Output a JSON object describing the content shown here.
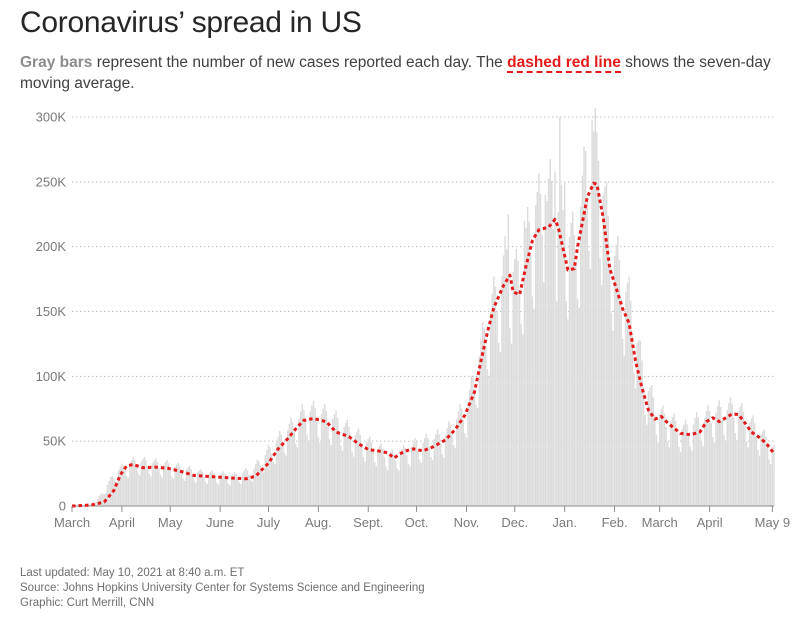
{
  "title": "Coronavirus’ spread in US",
  "subtitle": {
    "part1": "Gray bars",
    "part2": " represent the number of new cases reported each day. The ",
    "part3": "dashed red line",
    "part4": " shows the seven-day moving average."
  },
  "footer": {
    "updated": "Last updated: May 10, 2021 at 8:40 a.m. ET",
    "source": "Source: Johns Hopkins University Center for Systems Science and Engineering",
    "graphic": "Graphic: Curt Merrill, CNN"
  },
  "colors": {
    "bar": "#dcdcdc",
    "line": "#e31b1b",
    "grid": "#bdbdbd",
    "axis": "#8c8c8c"
  },
  "chart_data": {
    "type": "bar",
    "title": "Coronavirus’ spread in US",
    "xlabel": "",
    "ylabel": "",
    "ylim": [
      0,
      300000
    ],
    "xlim_days": [
      0,
      436
    ],
    "yticks": [
      {
        "value": 0,
        "label": "0"
      },
      {
        "value": 50000,
        "label": "50K"
      },
      {
        "value": 100000,
        "label": "100K"
      },
      {
        "value": 150000,
        "label": "150K"
      },
      {
        "value": 200000,
        "label": "200K"
      },
      {
        "value": 250000,
        "label": "250K"
      },
      {
        "value": 300000,
        "label": "300K"
      }
    ],
    "xticks": [
      {
        "day": 0,
        "label": "March"
      },
      {
        "day": 31,
        "label": "April"
      },
      {
        "day": 61,
        "label": "May"
      },
      {
        "day": 92,
        "label": "June"
      },
      {
        "day": 122,
        "label": "July"
      },
      {
        "day": 153,
        "label": "Aug."
      },
      {
        "day": 184,
        "label": "Sept."
      },
      {
        "day": 214,
        "label": "Oct."
      },
      {
        "day": 245,
        "label": "Nov."
      },
      {
        "day": 275,
        "label": "Dec."
      },
      {
        "day": 306,
        "label": "Jan."
      },
      {
        "day": 337,
        "label": "Feb."
      },
      {
        "day": 365,
        "label": "March"
      },
      {
        "day": 396,
        "label": "April"
      },
      {
        "day": 435,
        "label": "May 9"
      }
    ],
    "series": [
      {
        "name": "Seven-day moving average",
        "style": "dashed-red-line",
        "points": [
          [
            0,
            0
          ],
          [
            12,
            800
          ],
          [
            20,
            3000
          ],
          [
            26,
            12000
          ],
          [
            30,
            24000
          ],
          [
            34,
            31000
          ],
          [
            38,
            32000
          ],
          [
            44,
            29500
          ],
          [
            52,
            30000
          ],
          [
            60,
            29000
          ],
          [
            68,
            26500
          ],
          [
            76,
            23500
          ],
          [
            88,
            22500
          ],
          [
            100,
            21500
          ],
          [
            108,
            21000
          ],
          [
            114,
            23000
          ],
          [
            122,
            33000
          ],
          [
            128,
            44000
          ],
          [
            134,
            52000
          ],
          [
            140,
            61000
          ],
          [
            144,
            66000
          ],
          [
            150,
            67500
          ],
          [
            158,
            65000
          ],
          [
            164,
            57000
          ],
          [
            172,
            53500
          ],
          [
            178,
            48000
          ],
          [
            184,
            43500
          ],
          [
            190,
            42500
          ],
          [
            196,
            41000
          ],
          [
            200,
            37000
          ],
          [
            206,
            42000
          ],
          [
            212,
            44000
          ],
          [
            218,
            42500
          ],
          [
            224,
            45500
          ],
          [
            232,
            51000
          ],
          [
            238,
            59000
          ],
          [
            244,
            70000
          ],
          [
            250,
            88000
          ],
          [
            254,
            112000
          ],
          [
            258,
            134000
          ],
          [
            262,
            153000
          ],
          [
            268,
            170000
          ],
          [
            272,
            178000
          ],
          [
            274,
            165000
          ],
          [
            278,
            163000
          ],
          [
            282,
            185000
          ],
          [
            286,
            205000
          ],
          [
            290,
            213000
          ],
          [
            296,
            215000
          ],
          [
            300,
            221000
          ],
          [
            302,
            215000
          ],
          [
            306,
            193000
          ],
          [
            308,
            182000
          ],
          [
            312,
            183000
          ],
          [
            314,
            200000
          ],
          [
            318,
            225000
          ],
          [
            320,
            238000
          ],
          [
            324,
            249000
          ],
          [
            326,
            248000
          ],
          [
            330,
            222000
          ],
          [
            334,
            183000
          ],
          [
            338,
            168000
          ],
          [
            342,
            152000
          ],
          [
            346,
            141000
          ],
          [
            350,
            112000
          ],
          [
            354,
            91000
          ],
          [
            358,
            74000
          ],
          [
            362,
            67000
          ],
          [
            366,
            69000
          ],
          [
            370,
            64000
          ],
          [
            374,
            60000
          ],
          [
            378,
            56000
          ],
          [
            384,
            55000
          ],
          [
            390,
            57000
          ],
          [
            394,
            65000
          ],
          [
            398,
            68000
          ],
          [
            402,
            65000
          ],
          [
            406,
            68000
          ],
          [
            410,
            71000
          ],
          [
            414,
            70500
          ],
          [
            418,
            64000
          ],
          [
            422,
            57000
          ],
          [
            428,
            52000
          ],
          [
            432,
            47000
          ],
          [
            436,
            40500
          ]
        ]
      },
      {
        "name": "Daily new cases",
        "style": "gray-bars",
        "anchors": [
          [
            0,
            0
          ],
          [
            14,
            1500
          ],
          [
            28,
            26000
          ],
          [
            40,
            33000
          ],
          [
            60,
            30000
          ],
          [
            80,
            24000
          ],
          [
            100,
            22000
          ],
          [
            112,
            26000
          ],
          [
            122,
            40000
          ],
          [
            136,
            58000
          ],
          [
            146,
            70000
          ],
          [
            160,
            66000
          ],
          [
            176,
            52000
          ],
          [
            190,
            42000
          ],
          [
            200,
            36000
          ],
          [
            214,
            45000
          ],
          [
            232,
            52000
          ],
          [
            246,
            75000
          ],
          [
            258,
            135000
          ],
          [
            270,
            180000
          ],
          [
            276,
            168000
          ],
          [
            288,
            215000
          ],
          [
            298,
            228000
          ],
          [
            304,
            210000
          ],
          [
            312,
            190000
          ],
          [
            320,
            250000
          ],
          [
            326,
            262000
          ],
          [
            334,
            195000
          ],
          [
            346,
            150000
          ],
          [
            356,
            90000
          ],
          [
            364,
            68000
          ],
          [
            380,
            56000
          ],
          [
            398,
            68000
          ],
          [
            412,
            72000
          ],
          [
            424,
            58000
          ],
          [
            436,
            42000
          ]
        ],
        "spikes": [
          [
            303,
            300000
          ],
          [
            323,
            298000
          ],
          [
            319,
            274000
          ],
          [
            327,
            266000
          ],
          [
            300,
            258000
          ],
          [
            306,
            250000
          ],
          [
            271,
            225000
          ],
          [
            294,
            240000
          ],
          [
            288,
            232000
          ],
          [
            281,
            220000
          ]
        ]
      }
    ]
  }
}
